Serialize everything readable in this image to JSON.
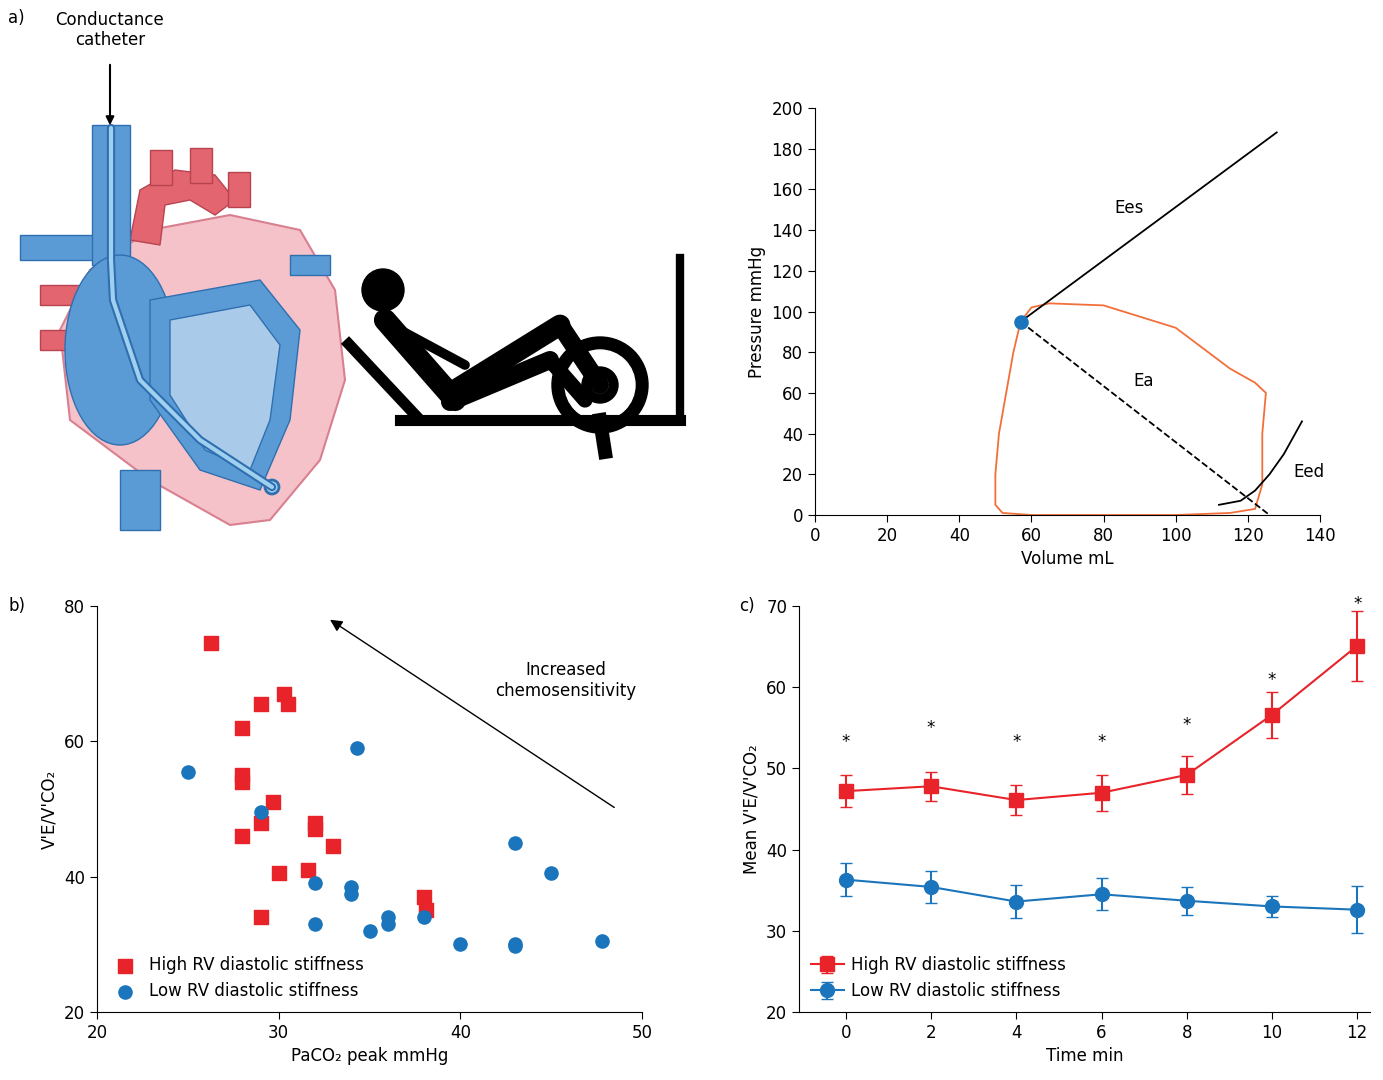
{
  "diagram": {
    "label": "a)",
    "catheter_label": "Conductance\ncatheter"
  },
  "chart_data": [
    {
      "type": "line",
      "xlabel": "Volume mL",
      "ylabel": "Pressure mmHg",
      "xlim": [
        0,
        140
      ],
      "ylim": [
        0,
        200
      ],
      "xticks": [
        0,
        20,
        40,
        60,
        80,
        100,
        120,
        140
      ],
      "yticks": [
        0,
        20,
        40,
        60,
        80,
        100,
        120,
        140,
        160,
        180,
        200
      ],
      "series": [
        {
          "type": "line",
          "color": "#f26f3a",
          "line_style": "solid",
          "x": [
            57,
            60,
            65,
            80,
            100,
            115,
            122,
            125,
            124,
            124,
            122,
            115,
            100,
            80,
            60,
            52,
            50,
            50,
            51,
            53,
            55,
            57
          ],
          "values": [
            95,
            102,
            104,
            103,
            92,
            72,
            65,
            60,
            40,
            15,
            3,
            1,
            0,
            0,
            0,
            1,
            5,
            20,
            40,
            60,
            80,
            95
          ]
        },
        {
          "type": "line",
          "color": "#000000",
          "line_style": "solid",
          "x": [
            57,
            128
          ],
          "values": [
            95,
            188
          ]
        },
        {
          "type": "line",
          "color": "#000000",
          "line_style": "dashed",
          "x": [
            57,
            126
          ],
          "values": [
            95,
            0
          ]
        },
        {
          "type": "line",
          "color": "#000000",
          "line_style": "solid",
          "x": [
            112,
            118,
            122,
            126,
            130,
            135
          ],
          "values": [
            5,
            7,
            12,
            20,
            30,
            46
          ]
        },
        {
          "type": "scatter",
          "color": "#1b75bc",
          "marker": "circle",
          "x": [
            57
          ],
          "values": [
            95
          ]
        }
      ],
      "annotations": [
        {
          "text": "Ees",
          "x": 87,
          "y": 151
        },
        {
          "text": "Ea",
          "x": 91,
          "y": 66
        },
        {
          "text": "Eed",
          "x": 137,
          "y": 21
        }
      ]
    },
    {
      "type": "scatter",
      "title": "b)",
      "xlabel": "PaCO₂ peak mmHg",
      "ylabel": "V'E/V'CO₂",
      "xlim": [
        20,
        50
      ],
      "ylim": [
        20,
        80
      ],
      "xticks": [
        20,
        30,
        40,
        50
      ],
      "yticks": [
        20,
        40,
        60,
        80
      ],
      "legend": "lower left",
      "series": [
        {
          "name": "High RV diastolic stiffness",
          "color": "#e8242a",
          "marker": "square",
          "x": [
            26.3,
            28,
            28,
            28,
            28,
            29,
            29,
            29,
            29.7,
            30,
            30.3,
            30.5,
            31.6,
            32,
            32,
            33,
            38,
            38.1
          ],
          "values": [
            74.5,
            62,
            55,
            54,
            46,
            65.5,
            48,
            34,
            51,
            40.5,
            67,
            65.5,
            41,
            48,
            47,
            44.5,
            37,
            35
          ]
        },
        {
          "name": "Low RV diastolic stiffness",
          "color": "#1b75bc",
          "marker": "circle",
          "x": [
            25,
            29,
            32,
            32,
            34,
            34,
            34.3,
            35,
            36,
            36,
            38,
            40,
            43,
            43,
            43,
            45,
            47.8
          ],
          "values": [
            55.5,
            49.5,
            39,
            33,
            38.5,
            37.5,
            59,
            32,
            34,
            33,
            34,
            30,
            45,
            30,
            29.8,
            40.5,
            30.5
          ]
        }
      ],
      "annotations": [
        {
          "text": "Increased\nchemosensitivity",
          "x": 45.8,
          "y": 69,
          "arrow_from": [
            48.6,
            50
          ],
          "arrow_to": [
            32.7,
            78.2
          ]
        }
      ]
    },
    {
      "type": "line",
      "title": "c)",
      "xlabel": "Time min",
      "ylabel": "Mean V'E/V'CO₂",
      "xlim": [
        -1.1,
        12.3
      ],
      "ylim": [
        20,
        70
      ],
      "xticks": [
        0,
        2,
        4,
        6,
        8,
        10,
        12
      ],
      "yticks": [
        20,
        30,
        40,
        50,
        60,
        70
      ],
      "legend": "lower left",
      "x": [
        0,
        2,
        4,
        6,
        8,
        10,
        12
      ],
      "series": [
        {
          "name": "High RV diastolic stiffness",
          "color": "#e8242a",
          "marker": "square",
          "values": [
            47.2,
            47.8,
            46.1,
            47.0,
            49.2,
            56.6,
            65.1
          ],
          "error": [
            2.0,
            1.8,
            1.8,
            2.2,
            2.3,
            2.8,
            4.3
          ]
        },
        {
          "name": "Low RV diastolic stiffness",
          "color": "#1b75bc",
          "marker": "circle",
          "values": [
            36.3,
            35.4,
            33.6,
            34.5,
            33.7,
            33.0,
            32.6
          ],
          "error": [
            2.0,
            2.0,
            2.0,
            2.0,
            1.7,
            1.3,
            2.9
          ]
        }
      ],
      "annotations": [
        {
          "text": "*",
          "x": 0,
          "y": 53.3
        },
        {
          "text": "*",
          "x": 2,
          "y": 55.0
        },
        {
          "text": "*",
          "x": 4,
          "y": 53.3
        },
        {
          "text": "*",
          "x": 6,
          "y": 53.3
        },
        {
          "text": "*",
          "x": 8,
          "y": 55.3
        },
        {
          "text": "*",
          "x": 10,
          "y": 60.9
        },
        {
          "text": "*",
          "x": 12,
          "y": 70.2
        }
      ]
    }
  ]
}
